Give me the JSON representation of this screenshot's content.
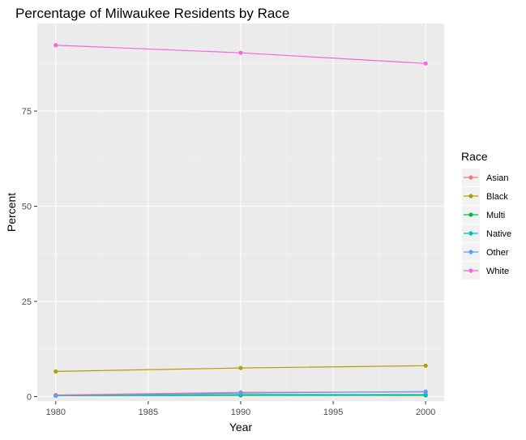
{
  "chart_data": {
    "type": "line",
    "title": "Percentage of Milwaukee Residents by Race",
    "xlabel": "Year",
    "ylabel": "Percent",
    "xlim": [
      1979,
      2001
    ],
    "ylim": [
      -1.2,
      98
    ],
    "x_ticks": [
      1980,
      1985,
      1990,
      1995,
      2000
    ],
    "y_ticks": [
      0,
      25,
      50,
      75
    ],
    "x": [
      1980,
      1990,
      2000
    ],
    "grid": true,
    "legend": {
      "title": "Race",
      "position": "right"
    },
    "series": [
      {
        "name": "Asian",
        "color": "#F8766D",
        "values": [
          0.4,
          1.1,
          1.2
        ]
      },
      {
        "name": "Black",
        "color": "#B79F00",
        "values": [
          6.6,
          7.5,
          8.1
        ]
      },
      {
        "name": "Multi",
        "color": "#00BA38",
        "values": [
          0.2,
          0.3,
          0.3
        ]
      },
      {
        "name": "Native",
        "color": "#00BFC4",
        "values": [
          0.2,
          0.5,
          0.5
        ]
      },
      {
        "name": "Other",
        "color": "#619CFF",
        "values": [
          0.2,
          0.9,
          1.3
        ]
      },
      {
        "name": "White",
        "color": "#F564E3",
        "values": [
          92.3,
          90.3,
          87.5
        ]
      }
    ]
  }
}
